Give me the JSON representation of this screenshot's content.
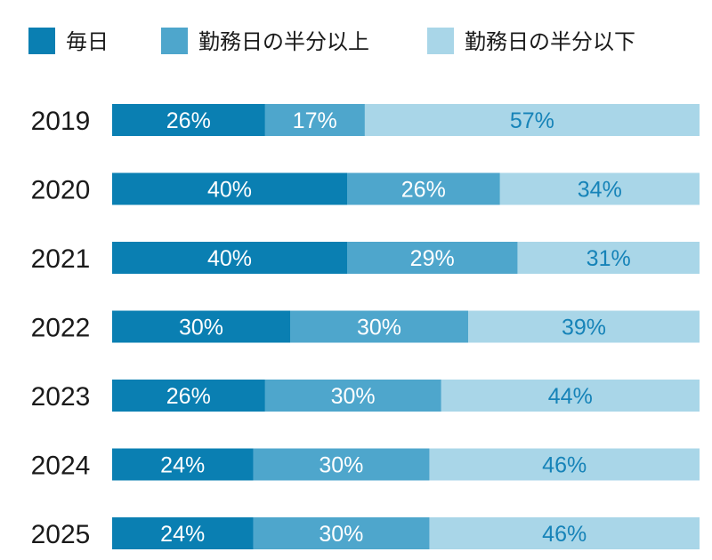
{
  "chart_data": {
    "type": "bar",
    "stacked": true,
    "orientation": "horizontal",
    "unit": "%",
    "categories": [
      "2019",
      "2020",
      "2021",
      "2022",
      "2023",
      "2024",
      "2025"
    ],
    "series": [
      {
        "name": "毎日",
        "color": "#0a7fb2",
        "label_color": "#ffffff",
        "values": [
          26,
          40,
          40,
          30,
          26,
          24,
          24
        ]
      },
      {
        "name": "勤務日の半分以上",
        "color": "#4ea6cc",
        "label_color": "#ffffff",
        "values": [
          17,
          26,
          29,
          30,
          30,
          30,
          30
        ]
      },
      {
        "name": "勤務日の半分以下",
        "color": "#a9d6e8",
        "label_color": "#1683b8",
        "values": [
          57,
          34,
          31,
          39,
          44,
          46,
          46
        ]
      }
    ],
    "legend_position": "top",
    "grid": false
  }
}
